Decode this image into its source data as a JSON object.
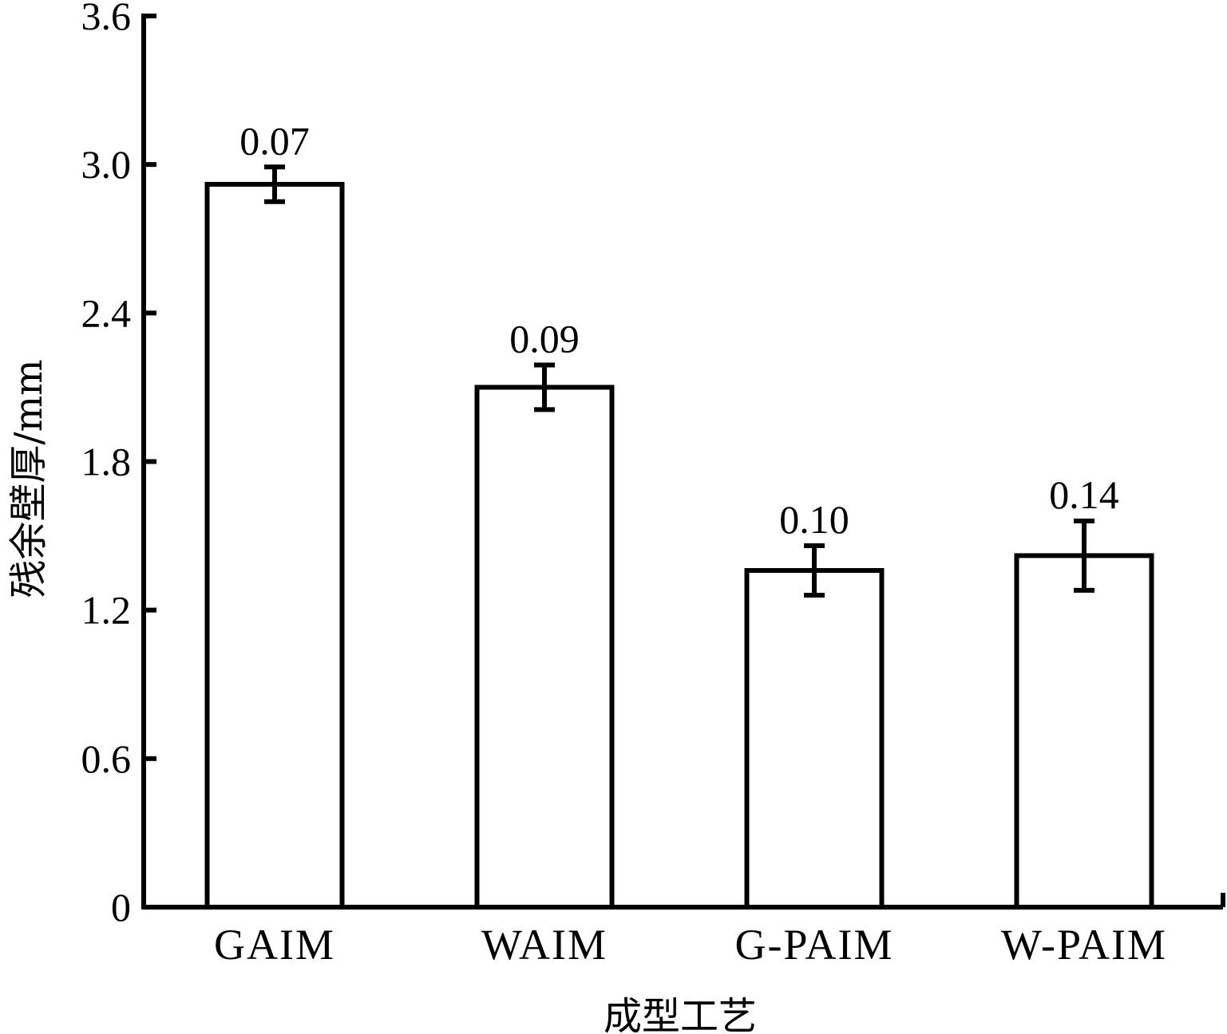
{
  "chart_data": {
    "type": "bar",
    "title": "",
    "xlabel": "成型工艺",
    "ylabel": "残余壁厚/mm",
    "categories": [
      "GAIM",
      "WAIM",
      "G-PAIM",
      "W-PAIM"
    ],
    "values": [
      2.92,
      2.1,
      1.36,
      1.42
    ],
    "errors": [
      0.07,
      0.09,
      0.1,
      0.14
    ],
    "data_labels": [
      "0.07",
      "0.09",
      "0.10",
      "0.14"
    ],
    "ylim": [
      0,
      3.6
    ],
    "yticks": [
      0,
      0.6,
      1.2,
      1.8,
      2.4,
      3.0,
      3.6
    ],
    "ytick_labels": [
      "0",
      "0.6",
      "1.2",
      "1.8",
      "2.4",
      "3.0",
      "3.6"
    ],
    "grid": false,
    "bar_fill": "#ffffff",
    "stroke_color": "#000000"
  }
}
